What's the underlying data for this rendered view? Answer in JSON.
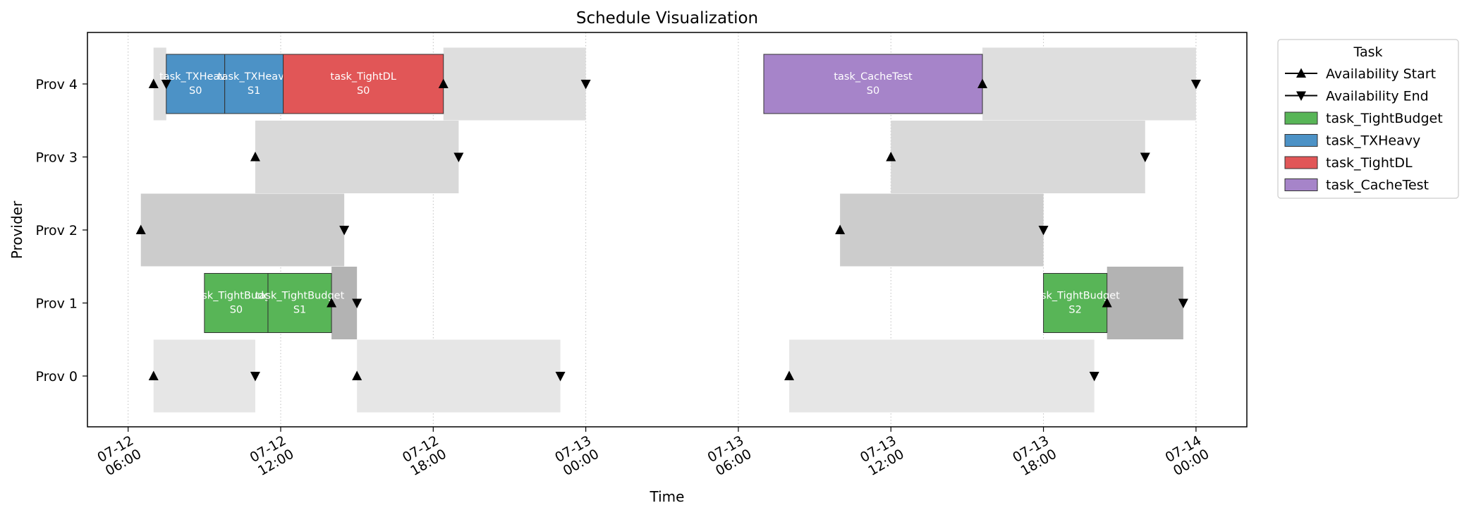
{
  "chart_data": {
    "type": "gantt",
    "title": "Schedule Visualization",
    "xlabel": "Time",
    "ylabel": "Provider",
    "x_ticks": [
      {
        "t": 6,
        "line1": "07-12",
        "line2": "06:00"
      },
      {
        "t": 12,
        "line1": "07-12",
        "line2": "12:00"
      },
      {
        "t": 18,
        "line1": "07-12",
        "line2": "18:00"
      },
      {
        "t": 24,
        "line1": "07-13",
        "line2": "00:00"
      },
      {
        "t": 30,
        "line1": "07-13",
        "line2": "06:00"
      },
      {
        "t": 36,
        "line1": "07-13",
        "line2": "12:00"
      },
      {
        "t": 42,
        "line1": "07-13",
        "line2": "18:00"
      },
      {
        "t": 48,
        "line1": "07-14",
        "line2": "00:00"
      }
    ],
    "xlim": [
      4.4,
      50.0
    ],
    "providers": [
      "Prov 0",
      "Prov 1",
      "Prov 2",
      "Prov 3",
      "Prov 4"
    ],
    "availability": [
      {
        "provider": 0,
        "start": 7.0,
        "end": 11.0
      },
      {
        "provider": 0,
        "start": 15.0,
        "end": 23.0
      },
      {
        "provider": 0,
        "start": 32.0,
        "end": 44.0
      },
      {
        "provider": 1,
        "start": 14.0,
        "end": 15.0
      },
      {
        "provider": 1,
        "start": 44.5,
        "end": 47.5
      },
      {
        "provider": 2,
        "start": 6.5,
        "end": 14.5
      },
      {
        "provider": 2,
        "start": 34.0,
        "end": 42.0
      },
      {
        "provider": 3,
        "start": 11.0,
        "end": 19.0
      },
      {
        "provider": 3,
        "start": 36.0,
        "end": 46.0
      },
      {
        "provider": 4,
        "start": 7.0,
        "end": 7.5
      },
      {
        "provider": 4,
        "start": 18.4,
        "end": 24.0
      },
      {
        "provider": 4,
        "start": 39.6,
        "end": 48.0
      }
    ],
    "availability_colors": [
      "#e6e6e6",
      "#b3b3b3",
      "#cccccc",
      "#d9d9d9",
      "#dedede"
    ],
    "tasks": [
      {
        "provider": 1,
        "start": 9.0,
        "end": 11.5,
        "task": "task_TightBudget",
        "line1": "task_TightBudget",
        "line2": "S0"
      },
      {
        "provider": 1,
        "start": 11.5,
        "end": 14.0,
        "task": "task_TightBudget",
        "line1": "task_TightBudget",
        "line2": "S1"
      },
      {
        "provider": 1,
        "start": 42.0,
        "end": 44.5,
        "task": "task_TightBudget",
        "line1": "task_TightBudget",
        "line2": "S2"
      },
      {
        "provider": 4,
        "start": 7.5,
        "end": 9.8,
        "task": "task_TXHeavy",
        "line1": "task_TXHeavy",
        "line2": "S0"
      },
      {
        "provider": 4,
        "start": 9.8,
        "end": 12.1,
        "task": "task_TXHeavy",
        "line1": "task_TXHeavy",
        "line2": "S1"
      },
      {
        "provider": 4,
        "start": 12.1,
        "end": 18.4,
        "task": "task_TightDL",
        "line1": "task_TightDL",
        "line2": "S0"
      },
      {
        "provider": 4,
        "start": 31.0,
        "end": 39.6,
        "task": "task_CacheTest",
        "line1": "task_CacheTest",
        "line2": "S0"
      }
    ],
    "task_colors": {
      "task_TightBudget": "#58b557",
      "task_TXHeavy": "#4c92c6",
      "task_TightDL": "#e15657",
      "task_CacheTest": "#a684c9"
    },
    "legend": {
      "title": "Task",
      "placement": "outside-right",
      "items": [
        {
          "label": "Availability Start",
          "kind": "marker-up"
        },
        {
          "label": "Availability End",
          "kind": "marker-down"
        },
        {
          "label": "task_TightBudget",
          "kind": "patch",
          "task": "task_TightBudget"
        },
        {
          "label": "task_TXHeavy",
          "kind": "patch",
          "task": "task_TXHeavy"
        },
        {
          "label": "task_TightDL",
          "kind": "patch",
          "task": "task_TightDL"
        },
        {
          "label": "task_CacheTest",
          "kind": "patch",
          "task": "task_CacheTest"
        }
      ]
    },
    "grid": "vertical-dotted"
  }
}
